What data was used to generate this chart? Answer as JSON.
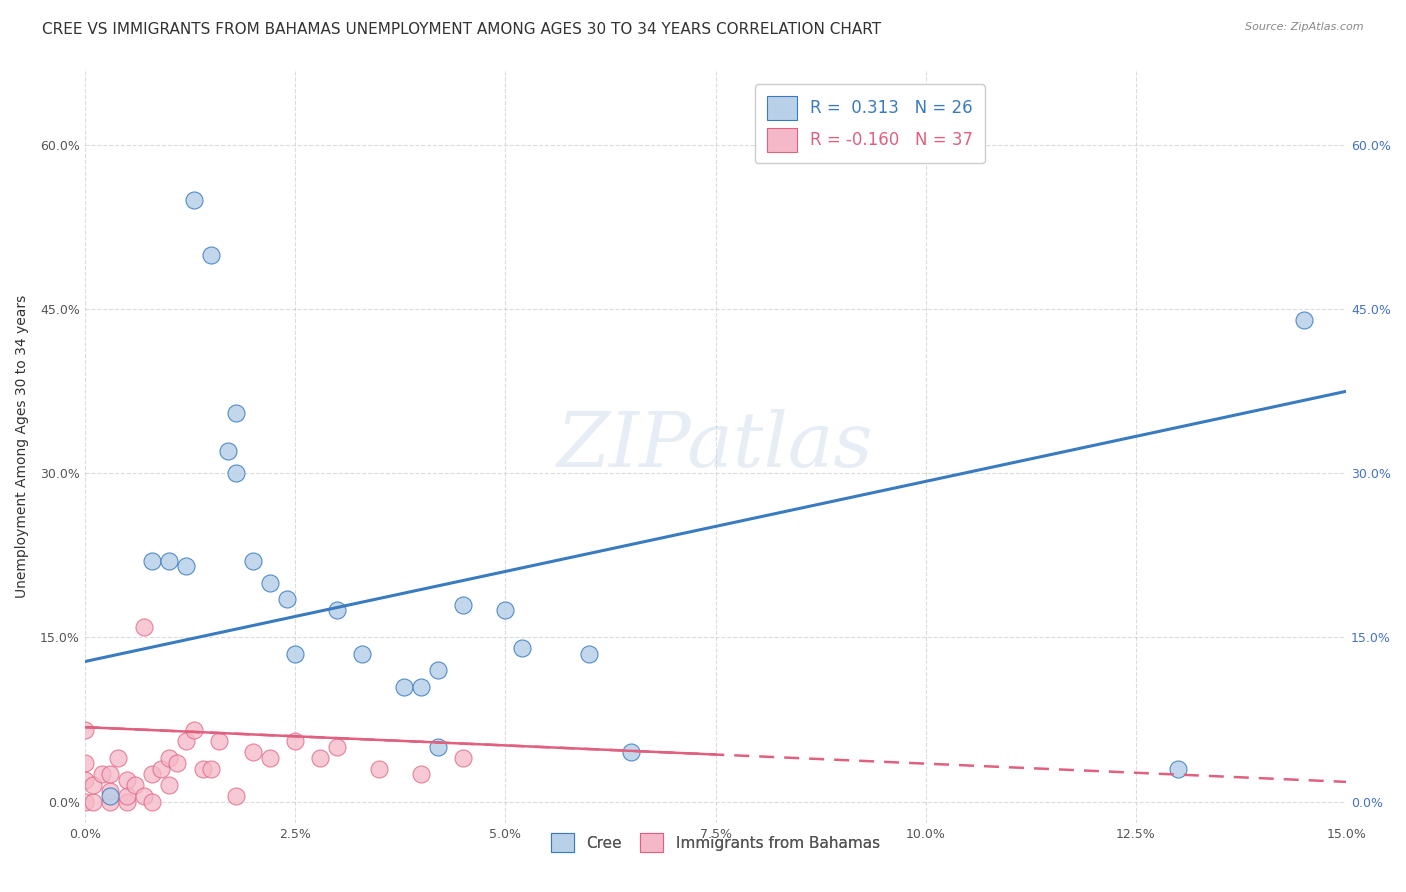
{
  "title": "CREE VS IMMIGRANTS FROM BAHAMAS UNEMPLOYMENT AMONG AGES 30 TO 34 YEARS CORRELATION CHART",
  "source": "Source: ZipAtlas.com",
  "ylabel": "Unemployment Among Ages 30 to 34 years",
  "xlim": [
    0.0,
    0.15
  ],
  "ylim": [
    -0.02,
    0.67
  ],
  "xticks": [
    0.0,
    0.025,
    0.05,
    0.075,
    0.1,
    0.125,
    0.15
  ],
  "xticklabels": [
    "0.0%",
    "2.5%",
    "5.0%",
    "7.5%",
    "10.0%",
    "12.5%",
    "15.0%"
  ],
  "yticks": [
    0.0,
    0.15,
    0.3,
    0.45,
    0.6
  ],
  "yticklabels": [
    "0.0%",
    "15.0%",
    "30.0%",
    "45.0%",
    "60.0%"
  ],
  "cree_x": [
    0.003,
    0.008,
    0.01,
    0.012,
    0.013,
    0.015,
    0.017,
    0.018,
    0.018,
    0.02,
    0.022,
    0.024,
    0.025,
    0.03,
    0.033,
    0.038,
    0.04,
    0.042,
    0.042,
    0.045,
    0.05,
    0.052,
    0.06,
    0.065,
    0.13,
    0.145
  ],
  "cree_y": [
    0.005,
    0.22,
    0.22,
    0.215,
    0.55,
    0.5,
    0.32,
    0.355,
    0.3,
    0.22,
    0.2,
    0.185,
    0.135,
    0.175,
    0.135,
    0.105,
    0.105,
    0.05,
    0.12,
    0.18,
    0.175,
    0.14,
    0.135,
    0.045,
    0.03,
    0.44
  ],
  "bahamas_x": [
    0.0,
    0.0,
    0.0,
    0.0,
    0.001,
    0.001,
    0.002,
    0.003,
    0.003,
    0.003,
    0.004,
    0.005,
    0.005,
    0.005,
    0.006,
    0.007,
    0.007,
    0.008,
    0.008,
    0.009,
    0.01,
    0.01,
    0.011,
    0.012,
    0.013,
    0.014,
    0.015,
    0.016,
    0.018,
    0.02,
    0.022,
    0.025,
    0.028,
    0.03,
    0.035,
    0.04,
    0.045
  ],
  "bahamas_y": [
    0.0,
    0.02,
    0.035,
    0.065,
    0.0,
    0.015,
    0.025,
    0.0,
    0.01,
    0.025,
    0.04,
    0.0,
    0.005,
    0.02,
    0.015,
    0.005,
    0.16,
    0.0,
    0.025,
    0.03,
    0.015,
    0.04,
    0.035,
    0.055,
    0.065,
    0.03,
    0.03,
    0.055,
    0.005,
    0.045,
    0.04,
    0.055,
    0.04,
    0.05,
    0.03,
    0.025,
    0.04
  ],
  "cree_color": "#b8d0e8",
  "bahamas_color": "#f5b8c8",
  "cree_line_color": "#3a7bbf",
  "bahamas_line_color": "#e06080",
  "legend_cree_R": "0.313",
  "legend_cree_N": "26",
  "legend_bahamas_R": "-0.160",
  "legend_bahamas_N": "37",
  "watermark": "ZIPatlas",
  "background_color": "#ffffff",
  "grid_color": "#cccccc",
  "title_fontsize": 11,
  "axis_label_fontsize": 10,
  "tick_fontsize": 9,
  "right_tick_color": "#4472c4"
}
